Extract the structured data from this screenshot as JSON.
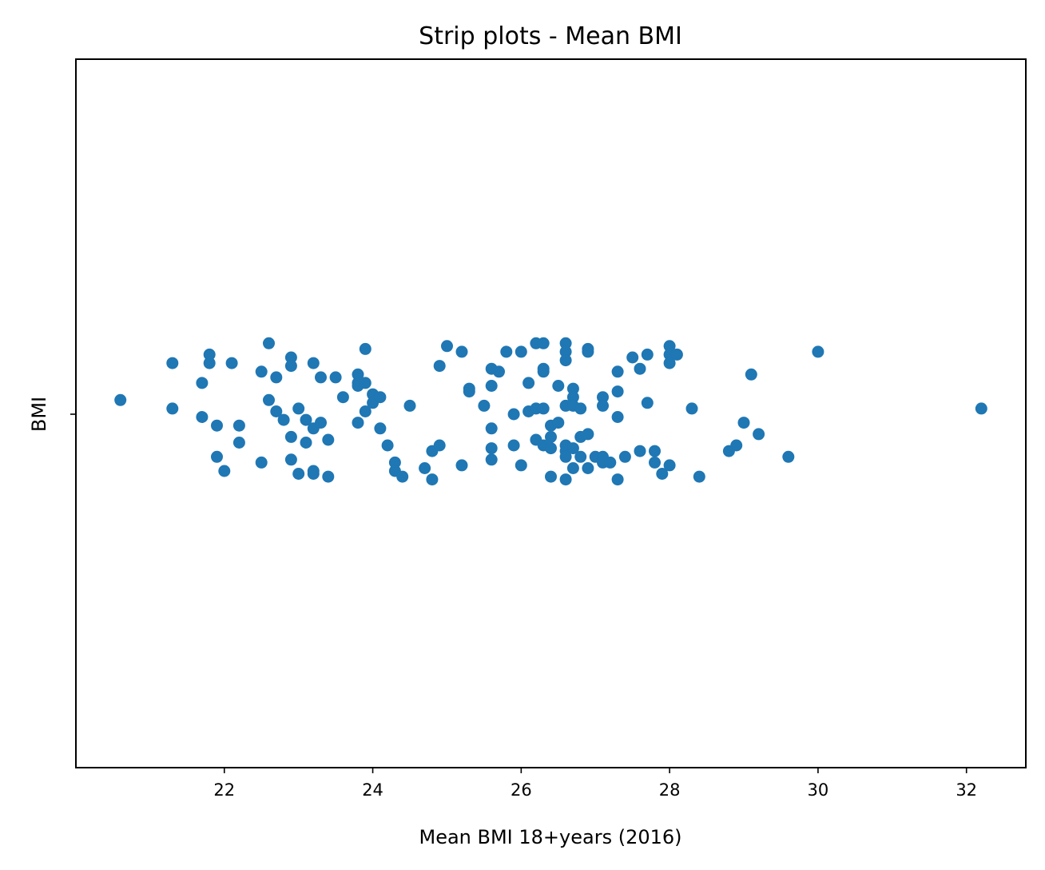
{
  "chart_data": {
    "type": "scatter",
    "title": "Strip plots - Mean BMI",
    "xlabel": "Mean BMI 18+years (2016)",
    "ylabel": "",
    "category": "BMI",
    "xlim": [
      20.0,
      32.8
    ],
    "xticks": [
      "22",
      "24",
      "26",
      "28",
      "30",
      "32"
    ],
    "grid": false,
    "color": "#1f77b4",
    "points": [
      {
        "x": 20.6,
        "y": 0.05
      },
      {
        "x": 21.3,
        "y": 0.18
      },
      {
        "x": 21.3,
        "y": 0.02
      },
      {
        "x": 21.7,
        "y": 0.11
      },
      {
        "x": 21.7,
        "y": -0.01
      },
      {
        "x": 21.8,
        "y": 0.21
      },
      {
        "x": 21.8,
        "y": 0.18
      },
      {
        "x": 21.9,
        "y": -0.04
      },
      {
        "x": 21.9,
        "y": -0.15
      },
      {
        "x": 22.0,
        "y": -0.2
      },
      {
        "x": 22.1,
        "y": 0.18
      },
      {
        "x": 22.2,
        "y": -0.04
      },
      {
        "x": 22.2,
        "y": -0.1
      },
      {
        "x": 22.5,
        "y": 0.15
      },
      {
        "x": 22.5,
        "y": -0.17
      },
      {
        "x": 22.6,
        "y": 0.25
      },
      {
        "x": 22.6,
        "y": 0.05
      },
      {
        "x": 22.7,
        "y": 0.13
      },
      {
        "x": 22.7,
        "y": 0.01
      },
      {
        "x": 22.8,
        "y": -0.02
      },
      {
        "x": 22.9,
        "y": 0.2
      },
      {
        "x": 22.9,
        "y": 0.17
      },
      {
        "x": 22.9,
        "y": -0.08
      },
      {
        "x": 22.9,
        "y": -0.16
      },
      {
        "x": 23.0,
        "y": 0.02
      },
      {
        "x": 23.0,
        "y": -0.21
      },
      {
        "x": 23.1,
        "y": -0.02
      },
      {
        "x": 23.1,
        "y": -0.1
      },
      {
        "x": 23.2,
        "y": 0.18
      },
      {
        "x": 23.2,
        "y": -0.05
      },
      {
        "x": 23.2,
        "y": -0.21
      },
      {
        "x": 23.2,
        "y": -0.2
      },
      {
        "x": 23.3,
        "y": 0.13
      },
      {
        "x": 23.3,
        "y": -0.03
      },
      {
        "x": 23.4,
        "y": -0.09
      },
      {
        "x": 23.4,
        "y": -0.22
      },
      {
        "x": 23.5,
        "y": 0.13
      },
      {
        "x": 23.6,
        "y": 0.06
      },
      {
        "x": 23.8,
        "y": 0.14
      },
      {
        "x": 23.8,
        "y": 0.11
      },
      {
        "x": 23.8,
        "y": 0.1
      },
      {
        "x": 23.8,
        "y": -0.03
      },
      {
        "x": 23.9,
        "y": 0.23
      },
      {
        "x": 23.9,
        "y": 0.11
      },
      {
        "x": 23.9,
        "y": 0.01
      },
      {
        "x": 24.0,
        "y": 0.07
      },
      {
        "x": 24.0,
        "y": 0.04
      },
      {
        "x": 24.1,
        "y": 0.06
      },
      {
        "x": 24.1,
        "y": -0.05
      },
      {
        "x": 24.2,
        "y": -0.11
      },
      {
        "x": 24.3,
        "y": -0.17
      },
      {
        "x": 24.3,
        "y": -0.2
      },
      {
        "x": 24.4,
        "y": -0.22
      },
      {
        "x": 24.5,
        "y": 0.03
      },
      {
        "x": 24.7,
        "y": -0.19
      },
      {
        "x": 24.8,
        "y": -0.13
      },
      {
        "x": 24.8,
        "y": -0.23
      },
      {
        "x": 24.9,
        "y": 0.17
      },
      {
        "x": 24.9,
        "y": -0.11
      },
      {
        "x": 25.0,
        "y": 0.24
      },
      {
        "x": 25.2,
        "y": 0.22
      },
      {
        "x": 25.2,
        "y": -0.18
      },
      {
        "x": 25.3,
        "y": 0.09
      },
      {
        "x": 25.3,
        "y": 0.08
      },
      {
        "x": 25.5,
        "y": 0.03
      },
      {
        "x": 25.6,
        "y": 0.16
      },
      {
        "x": 25.6,
        "y": 0.1
      },
      {
        "x": 25.6,
        "y": -0.05
      },
      {
        "x": 25.6,
        "y": -0.12
      },
      {
        "x": 25.6,
        "y": -0.16
      },
      {
        "x": 25.7,
        "y": 0.15
      },
      {
        "x": 25.8,
        "y": 0.22
      },
      {
        "x": 25.9,
        "y": 0.0
      },
      {
        "x": 25.9,
        "y": -0.11
      },
      {
        "x": 26.0,
        "y": 0.22
      },
      {
        "x": 26.0,
        "y": -0.18
      },
      {
        "x": 26.1,
        "y": 0.11
      },
      {
        "x": 26.1,
        "y": 0.01
      },
      {
        "x": 26.2,
        "y": 0.25
      },
      {
        "x": 26.2,
        "y": 0.02
      },
      {
        "x": 26.2,
        "y": -0.09
      },
      {
        "x": 26.3,
        "y": 0.25
      },
      {
        "x": 26.3,
        "y": 0.16
      },
      {
        "x": 26.3,
        "y": 0.15
      },
      {
        "x": 26.3,
        "y": 0.02
      },
      {
        "x": 26.3,
        "y": -0.11
      },
      {
        "x": 26.4,
        "y": -0.04
      },
      {
        "x": 26.4,
        "y": -0.08
      },
      {
        "x": 26.4,
        "y": -0.12
      },
      {
        "x": 26.4,
        "y": -0.22
      },
      {
        "x": 26.5,
        "y": 0.1
      },
      {
        "x": 26.5,
        "y": -0.03
      },
      {
        "x": 26.6,
        "y": 0.25
      },
      {
        "x": 26.6,
        "y": 0.22
      },
      {
        "x": 26.6,
        "y": 0.19
      },
      {
        "x": 26.6,
        "y": 0.03
      },
      {
        "x": 26.6,
        "y": -0.11
      },
      {
        "x": 26.6,
        "y": -0.13
      },
      {
        "x": 26.6,
        "y": -0.15
      },
      {
        "x": 26.6,
        "y": -0.23
      },
      {
        "x": 26.7,
        "y": 0.09
      },
      {
        "x": 26.7,
        "y": 0.06
      },
      {
        "x": 26.7,
        "y": 0.03
      },
      {
        "x": 26.7,
        "y": -0.12
      },
      {
        "x": 26.7,
        "y": -0.19
      },
      {
        "x": 26.8,
        "y": 0.02
      },
      {
        "x": 26.8,
        "y": -0.08
      },
      {
        "x": 26.8,
        "y": -0.15
      },
      {
        "x": 26.9,
        "y": 0.23
      },
      {
        "x": 26.9,
        "y": 0.22
      },
      {
        "x": 26.9,
        "y": -0.07
      },
      {
        "x": 26.9,
        "y": -0.19
      },
      {
        "x": 27.0,
        "y": -0.15
      },
      {
        "x": 27.1,
        "y": 0.06
      },
      {
        "x": 27.1,
        "y": 0.03
      },
      {
        "x": 27.1,
        "y": -0.15
      },
      {
        "x": 27.1,
        "y": -0.17
      },
      {
        "x": 27.2,
        "y": -0.17
      },
      {
        "x": 27.3,
        "y": 0.15
      },
      {
        "x": 27.3,
        "y": 0.08
      },
      {
        "x": 27.3,
        "y": -0.01
      },
      {
        "x": 27.3,
        "y": -0.23
      },
      {
        "x": 27.4,
        "y": -0.15
      },
      {
        "x": 27.5,
        "y": 0.2
      },
      {
        "x": 27.6,
        "y": 0.16
      },
      {
        "x": 27.6,
        "y": -0.13
      },
      {
        "x": 27.7,
        "y": 0.21
      },
      {
        "x": 27.7,
        "y": 0.04
      },
      {
        "x": 27.8,
        "y": -0.13
      },
      {
        "x": 27.8,
        "y": -0.17
      },
      {
        "x": 27.9,
        "y": -0.21
      },
      {
        "x": 28.0,
        "y": 0.24
      },
      {
        "x": 28.0,
        "y": 0.21
      },
      {
        "x": 28.0,
        "y": 0.18
      },
      {
        "x": 28.0,
        "y": -0.18
      },
      {
        "x": 28.1,
        "y": 0.21
      },
      {
        "x": 28.3,
        "y": 0.02
      },
      {
        "x": 28.4,
        "y": -0.22
      },
      {
        "x": 28.8,
        "y": -0.13
      },
      {
        "x": 28.9,
        "y": -0.11
      },
      {
        "x": 29.0,
        "y": -0.03
      },
      {
        "x": 29.1,
        "y": 0.14
      },
      {
        "x": 29.2,
        "y": -0.07
      },
      {
        "x": 29.6,
        "y": -0.15
      },
      {
        "x": 30.0,
        "y": 0.22
      },
      {
        "x": 32.2,
        "y": 0.02
      }
    ]
  }
}
